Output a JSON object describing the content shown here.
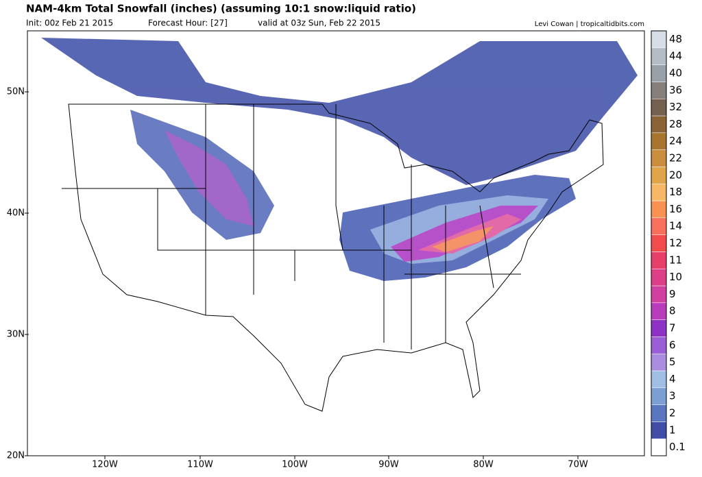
{
  "header": {
    "title": "NAM-4km Total Snowfall (inches) (assuming 10:1 snow:liquid ratio)",
    "init": "Init: 00z Feb 21 2015",
    "forecast_hour": "Forecast Hour: [27]",
    "valid": "valid at 03z Sun, Feb 22 2015",
    "credit": "Levi Cowan | tropicaltidbits.com"
  },
  "map": {
    "lat_labels": [
      "50N",
      "40N",
      "30N",
      "20N"
    ],
    "lon_labels": [
      "120W",
      "110W",
      "100W",
      "90W",
      "80W",
      "70W"
    ]
  },
  "colorbar": {
    "levels": [
      0.1,
      1,
      2,
      3,
      4,
      5,
      6,
      7,
      8,
      9,
      10,
      11,
      12,
      14,
      16,
      18,
      20,
      22,
      24,
      28,
      32,
      36,
      40,
      44,
      48
    ],
    "colors": [
      "#ffffff",
      "#3f4fa6",
      "#5a76bf",
      "#7b9fd2",
      "#a0bde2",
      "#a98ee0",
      "#9a5fd6",
      "#8c32c4",
      "#b83cbc",
      "#d0409e",
      "#dc3f86",
      "#e6406a",
      "#f04c4c",
      "#f7705c",
      "#f99250",
      "#f6b864",
      "#e0a44a",
      "#c98d3d",
      "#a8752f",
      "#8a6436",
      "#74604f",
      "#86807c",
      "#98a0a8",
      "#b4bcc6",
      "#d6dde6"
    ]
  }
}
